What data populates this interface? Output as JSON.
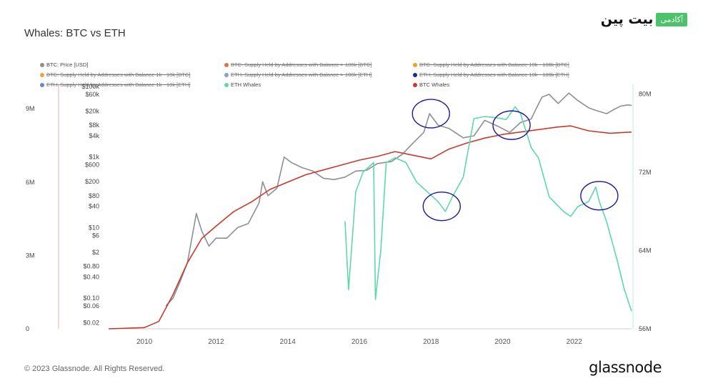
{
  "title": "Whales: BTC vs ETH",
  "brand": {
    "name": "بیت پین",
    "tag": "آکادمی"
  },
  "footer": "© 2023 Glassnode. All Rights Reserved.",
  "watermark": "glassnode",
  "chart_data": {
    "type": "line",
    "legend": [
      {
        "name": "BTC: Price [USD]",
        "color": "#8a9098",
        "strike": false
      },
      {
        "name": "BTC: Supply Held by Addresses with Balance > 100k [BTC]",
        "color": "#e07050",
        "strike": true
      },
      {
        "name": "BTC: Supply Held by Addresses with Balance 10k - 100k [BTC]",
        "color": "#f0a030",
        "strike": true
      },
      {
        "name": "BTC: Supply Held by Addresses with Balance 1k - 10k [BTC]",
        "color": "#f5a040",
        "strike": true
      },
      {
        "name": "ETH: Supply Held by Addresses with Balance > 100k [ETH]",
        "color": "#8aa0c8",
        "strike": true
      },
      {
        "name": "ETH: Supply Held by Addresses with Balance 10k - 100k [ETH]",
        "color": "#1a2a9c",
        "strike": true
      },
      {
        "name": "ETH: Supply Held by Addresses with Balance 1k - 10k [ETH]",
        "color": "#6a86c8",
        "strike": true
      },
      {
        "name": "ETH Whales",
        "color": "#5ed8a8",
        "strike": false
      },
      {
        "name": "BTC Whales",
        "color": "#c83a2a",
        "strike": false
      }
    ],
    "x_ticks": [
      "2010",
      "2012",
      "2014",
      "2016",
      "2018",
      "2020",
      "2022"
    ],
    "x_range": [
      2009.0,
      2023.6
    ],
    "left_axis_ticks": [
      "9M",
      "6M",
      "3M",
      "0"
    ],
    "left_axis_range": [
      0,
      10000000
    ],
    "price_axis_ticks": [
      "$100k",
      "$60k",
      "$20k",
      "$8k",
      "$4k",
      "$1k",
      "$600",
      "$200",
      "$80",
      "$40",
      "$10",
      "$6",
      "$2",
      "$0.80",
      "$0.40",
      "$0.10",
      "$0.06",
      "$0.02"
    ],
    "price_axis_scale": "log",
    "right_axis_ticks": [
      "80M",
      "72M",
      "64M",
      "56M"
    ],
    "right_axis_range": [
      56000000,
      81000000
    ],
    "series": [
      {
        "name": "BTC: Price [USD]",
        "color": "#8a9098",
        "axis": "price",
        "points": [
          [
            2010.6,
            0.06
          ],
          [
            2010.8,
            0.1
          ],
          [
            2011.0,
            0.3
          ],
          [
            2011.2,
            1
          ],
          [
            2011.45,
            25
          ],
          [
            2011.6,
            8
          ],
          [
            2011.8,
            3
          ],
          [
            2012.0,
            5
          ],
          [
            2012.3,
            5
          ],
          [
            2012.6,
            10
          ],
          [
            2012.9,
            13
          ],
          [
            2013.2,
            50
          ],
          [
            2013.3,
            200
          ],
          [
            2013.45,
            80
          ],
          [
            2013.7,
            130
          ],
          [
            2013.9,
            1000
          ],
          [
            2014.1,
            700
          ],
          [
            2014.4,
            500
          ],
          [
            2014.7,
            400
          ],
          [
            2015.0,
            250
          ],
          [
            2015.3,
            230
          ],
          [
            2015.6,
            270
          ],
          [
            2015.9,
            400
          ],
          [
            2016.2,
            420
          ],
          [
            2016.5,
            650
          ],
          [
            2016.9,
            750
          ],
          [
            2017.2,
            1200
          ],
          [
            2017.5,
            2500
          ],
          [
            2017.8,
            5000
          ],
          [
            2017.96,
            17000
          ],
          [
            2018.2,
            8000
          ],
          [
            2018.5,
            6500
          ],
          [
            2018.9,
            3500
          ],
          [
            2019.2,
            4000
          ],
          [
            2019.5,
            11000
          ],
          [
            2019.9,
            7200
          ],
          [
            2020.2,
            5000
          ],
          [
            2020.5,
            9500
          ],
          [
            2020.8,
            12000
          ],
          [
            2020.95,
            25000
          ],
          [
            2021.1,
            50000
          ],
          [
            2021.3,
            60000
          ],
          [
            2021.55,
            33000
          ],
          [
            2021.85,
            65000
          ],
          [
            2022.1,
            40000
          ],
          [
            2022.4,
            25000
          ],
          [
            2022.6,
            21000
          ],
          [
            2022.9,
            17000
          ],
          [
            2023.1,
            22000
          ],
          [
            2023.3,
            28000
          ],
          [
            2023.5,
            30000
          ],
          [
            2023.6,
            29000
          ]
        ]
      },
      {
        "name": "BTC Whales",
        "color": "#c83a2a",
        "axis": "left",
        "points": [
          [
            2009.0,
            0
          ],
          [
            2010.0,
            50000
          ],
          [
            2010.4,
            300000
          ],
          [
            2010.8,
            1400000
          ],
          [
            2011.2,
            2700000
          ],
          [
            2011.6,
            3700000
          ],
          [
            2012.0,
            4200000
          ],
          [
            2012.5,
            4800000
          ],
          [
            2013.0,
            5200000
          ],
          [
            2013.5,
            5700000
          ],
          [
            2014.0,
            6000000
          ],
          [
            2014.5,
            6300000
          ],
          [
            2015.0,
            6500000
          ],
          [
            2015.5,
            6700000
          ],
          [
            2016.0,
            6900000
          ],
          [
            2016.5,
            7050000
          ],
          [
            2017.0,
            7250000
          ],
          [
            2017.5,
            7100000
          ],
          [
            2018.0,
            6950000
          ],
          [
            2018.5,
            7350000
          ],
          [
            2019.0,
            7600000
          ],
          [
            2019.5,
            7800000
          ],
          [
            2020.0,
            7950000
          ],
          [
            2020.5,
            8050000
          ],
          [
            2021.0,
            8150000
          ],
          [
            2021.5,
            8250000
          ],
          [
            2021.9,
            8300000
          ],
          [
            2022.4,
            8100000
          ],
          [
            2023.0,
            8000000
          ],
          [
            2023.6,
            8050000
          ]
        ]
      },
      {
        "name": "ETH Whales",
        "color": "#5ed8a8",
        "axis": "right",
        "points": [
          [
            2015.6,
            67000000
          ],
          [
            2015.7,
            60000000
          ],
          [
            2015.9,
            70000000
          ],
          [
            2016.1,
            72000000
          ],
          [
            2016.4,
            73000000
          ],
          [
            2016.45,
            59000000
          ],
          [
            2016.6,
            64000000
          ],
          [
            2016.75,
            73000000
          ],
          [
            2017.0,
            73500000
          ],
          [
            2017.3,
            73000000
          ],
          [
            2017.6,
            71000000
          ],
          [
            2017.9,
            70000000
          ],
          [
            2018.2,
            69000000
          ],
          [
            2018.4,
            68000000
          ],
          [
            2018.6,
            69500000
          ],
          [
            2018.9,
            71500000
          ],
          [
            2019.2,
            77500000
          ],
          [
            2019.5,
            77700000
          ],
          [
            2019.8,
            77600000
          ],
          [
            2020.1,
            77400000
          ],
          [
            2020.35,
            78700000
          ],
          [
            2020.5,
            78000000
          ],
          [
            2020.8,
            74500000
          ],
          [
            2021.0,
            73500000
          ],
          [
            2021.3,
            69500000
          ],
          [
            2021.7,
            68000000
          ],
          [
            2021.9,
            67500000
          ],
          [
            2022.1,
            68500000
          ],
          [
            2022.4,
            69000000
          ],
          [
            2022.6,
            70500000
          ],
          [
            2022.7,
            69000000
          ],
          [
            2022.9,
            67000000
          ],
          [
            2023.2,
            63000000
          ],
          [
            2023.4,
            60000000
          ],
          [
            2023.6,
            57800000
          ]
        ]
      }
    ],
    "annotations": [
      {
        "shape": "circle",
        "color": "#1a1aa0",
        "x": 2018.0,
        "price": 17000
      },
      {
        "shape": "circle",
        "color": "#1a1aa0",
        "x": 2018.3,
        "price": 40
      },
      {
        "shape": "circle",
        "color": "#1a1aa0",
        "x": 2020.25,
        "price": 8000
      },
      {
        "shape": "circle",
        "color": "#1a1aa0",
        "x": 2022.7,
        "price": 80
      }
    ]
  }
}
